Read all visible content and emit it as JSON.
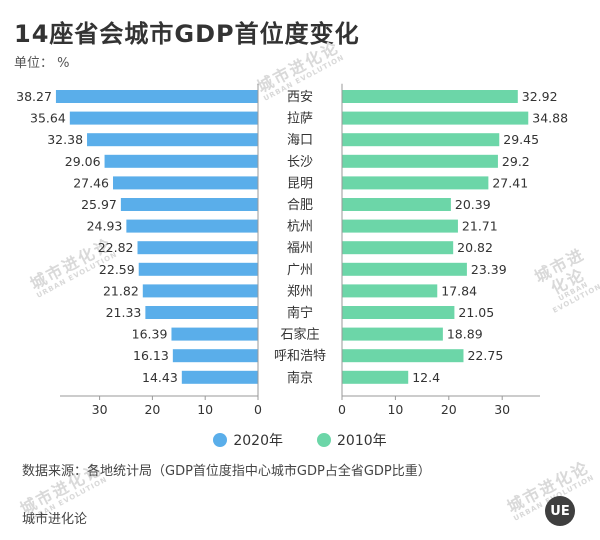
{
  "chart_data": {
    "type": "bar",
    "title": "14座省会城市GDP首位度变化",
    "unit_label": "单位： %",
    "categories": [
      "西安",
      "拉萨",
      "海口",
      "长沙",
      "昆明",
      "合肥",
      "杭州",
      "福州",
      "广州",
      "郑州",
      "南宁",
      "石家庄",
      "呼和浩特",
      "南京"
    ],
    "series": [
      {
        "name": "2020年",
        "color": "#5aaeea",
        "values": [
          38.27,
          35.64,
          32.38,
          29.06,
          27.46,
          25.97,
          24.93,
          22.82,
          22.59,
          21.82,
          21.33,
          16.39,
          16.13,
          14.43
        ]
      },
      {
        "name": "2010年",
        "color": "#6cd6a8",
        "values": [
          32.92,
          34.88,
          29.45,
          29.2,
          27.41,
          20.39,
          21.71,
          20.82,
          23.39,
          17.84,
          21.05,
          18.89,
          22.75,
          12.4
        ]
      }
    ],
    "left_axis": {
      "range": [
        0,
        38.27
      ],
      "ticks": [
        "30",
        "20",
        "10",
        "0"
      ]
    },
    "right_axis": {
      "range": [
        0,
        34.88
      ],
      "ticks": [
        "0",
        "10",
        "20",
        "30"
      ]
    }
  },
  "source": "数据来源：各地统计局（GDP首位度指中心城市GDP占全省GDP比重）",
  "brand": "城市进化论",
  "logo_text": "UE",
  "watermark": {
    "text": "城市进化论",
    "sub": "URBAN EVOLUTION"
  }
}
